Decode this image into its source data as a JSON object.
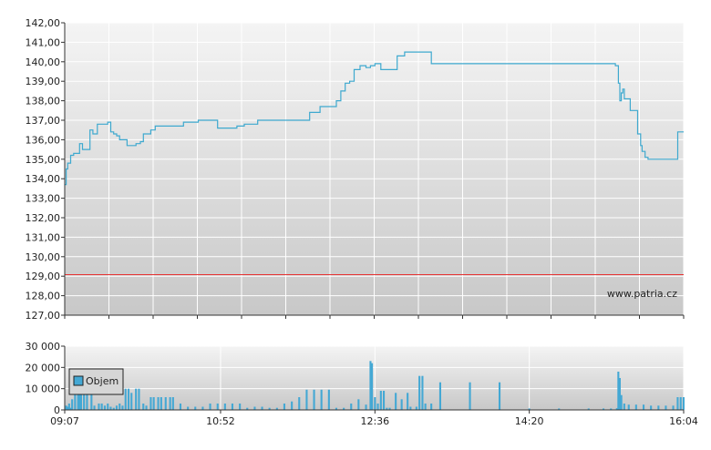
{
  "watermark": "www.patria.cz",
  "legend_label": "Objem",
  "colors": {
    "line": "#3ea9cf",
    "bar": "#44a8d4",
    "reference": "#e63333",
    "grid": "#ffffff",
    "axis": "#333333"
  },
  "chart_data": [
    {
      "type": "line",
      "ylim": [
        127,
        142
      ],
      "y_ticks": [
        "127,00",
        "128,00",
        "129,00",
        "130,00",
        "131,00",
        "132,00",
        "133,00",
        "134,00",
        "135,00",
        "136,00",
        "137,00",
        "138,00",
        "139,00",
        "140,00",
        "141,00",
        "142,00"
      ],
      "reference_value": 129.08,
      "x_range": [
        "09:07",
        "16:04"
      ],
      "grid": true,
      "series": [
        {
          "x": [
            "09:07",
            "09:08",
            "09:09",
            "09:11",
            "09:13",
            "09:17",
            "09:19",
            "09:24",
            "09:26",
            "09:29",
            "09:36",
            "09:38",
            "09:40",
            "09:42",
            "09:44",
            "09:49",
            "09:55",
            "09:58",
            "10:00",
            "10:05",
            "10:08",
            "10:10",
            "10:15",
            "10:18",
            "10:23",
            "10:27",
            "10:37",
            "10:50",
            "10:53",
            "10:55",
            "10:57",
            "11:03",
            "11:08",
            "11:14",
            "11:17",
            "11:23",
            "11:31",
            "11:37",
            "11:42",
            "11:47",
            "11:52",
            "11:57",
            "11:59",
            "12:03",
            "12:07",
            "12:10",
            "12:13",
            "12:16",
            "12:19",
            "12:22",
            "12:26",
            "12:30",
            "12:33",
            "12:36",
            "12:40",
            "12:46",
            "12:51",
            "12:56",
            "13:01",
            "13:07",
            "13:14",
            "13:26",
            "13:35",
            "13:52",
            "14:10",
            "14:20",
            "14:40",
            "15:00",
            "15:13",
            "15:18",
            "15:20",
            "15:21",
            "15:22",
            "15:23",
            "15:24",
            "15:28",
            "15:33",
            "15:35",
            "15:36",
            "15:38",
            "15:40",
            "15:43",
            "15:57",
            "16:00",
            "16:04"
          ],
          "y": [
            133.7,
            134.5,
            134.8,
            135.2,
            135.3,
            135.8,
            135.5,
            136.5,
            136.3,
            136.8,
            136.9,
            136.4,
            136.3,
            136.2,
            136.0,
            135.7,
            135.8,
            135.9,
            136.3,
            136.5,
            136.7,
            136.7,
            136.7,
            136.7,
            136.7,
            136.9,
            137.0,
            136.6,
            136.6,
            136.6,
            136.6,
            136.7,
            136.8,
            136.8,
            137.0,
            137.0,
            137.0,
            137.0,
            137.0,
            137.0,
            137.4,
            137.4,
            137.7,
            137.7,
            137.7,
            138.0,
            138.5,
            138.9,
            139.0,
            139.6,
            139.8,
            139.7,
            139.8,
            139.9,
            139.6,
            139.6,
            140.3,
            140.5,
            140.5,
            140.5,
            139.9,
            139.9,
            139.9,
            139.9,
            139.9,
            139.9,
            139.9,
            139.9,
            139.9,
            139.8,
            138.9,
            138.0,
            138.4,
            138.6,
            138.1,
            137.5,
            136.3,
            135.7,
            135.4,
            135.1,
            135.0,
            135.0,
            135.0,
            136.4,
            136.4
          ]
        }
      ]
    },
    {
      "type": "bar",
      "ylim": [
        0,
        30000
      ],
      "y_ticks": [
        "0",
        "10 000",
        "20 000",
        "30 000"
      ],
      "x_ticks": [
        "09:07",
        "10:52",
        "12:36",
        "14:20",
        "16:04"
      ],
      "legend": "Objem",
      "series": [
        {
          "name": "Objem",
          "x": [
            "09:08",
            "09:09",
            "09:10",
            "09:11",
            "09:12",
            "09:14",
            "09:16",
            "09:17",
            "09:18",
            "09:20",
            "09:22",
            "09:25",
            "09:27",
            "09:30",
            "09:32",
            "09:34",
            "09:36",
            "09:38",
            "09:40",
            "09:42",
            "09:44",
            "09:46",
            "09:48",
            "09:50",
            "09:52",
            "09:55",
            "09:57",
            "10:00",
            "10:02",
            "10:05",
            "10:07",
            "10:10",
            "10:12",
            "10:15",
            "10:18",
            "10:20",
            "10:25",
            "10:30",
            "10:35",
            "10:40",
            "10:45",
            "10:50",
            "10:55",
            "11:00",
            "11:05",
            "11:10",
            "11:15",
            "11:20",
            "11:25",
            "11:30",
            "11:35",
            "11:40",
            "11:45",
            "11:50",
            "11:55",
            "12:00",
            "12:05",
            "12:10",
            "12:15",
            "12:20",
            "12:25",
            "12:30",
            "12:33",
            "12:34",
            "12:36",
            "12:38",
            "12:40",
            "12:42",
            "12:44",
            "12:46",
            "12:50",
            "12:54",
            "12:58",
            "13:00",
            "13:04",
            "13:06",
            "13:08",
            "13:10",
            "13:14",
            "13:20",
            "13:40",
            "14:00",
            "14:20",
            "14:40",
            "15:00",
            "15:10",
            "15:15",
            "15:19",
            "15:20",
            "15:21",
            "15:22",
            "15:24",
            "15:27",
            "15:32",
            "15:37",
            "15:42",
            "15:47",
            "15:52",
            "15:57",
            "16:00",
            "16:02",
            "16:04"
          ],
          "y": [
            2000,
            1500,
            3000,
            1000,
            5000,
            12000,
            10000,
            9500,
            11000,
            19000,
            9000,
            10500,
            2000,
            3000,
            3000,
            2000,
            3000,
            1500,
            1000,
            2000,
            3000,
            2000,
            10000,
            10000,
            8000,
            10000,
            10000,
            3000,
            2000,
            6000,
            6000,
            6000,
            6000,
            6000,
            6000,
            6000,
            3000,
            1500,
            1500,
            1500,
            3000,
            3000,
            3000,
            3000,
            3000,
            1000,
            1500,
            1500,
            1000,
            1000,
            3000,
            4000,
            6000,
            9500,
            9500,
            9500,
            9500,
            1000,
            1000,
            3000,
            5000,
            2500,
            23000,
            22000,
            6000,
            3000,
            9000,
            9000,
            1000,
            1000,
            8000,
            5000,
            8000,
            1500,
            1500,
            16000,
            16000,
            3000,
            3000,
            13000,
            13000,
            13000,
            700,
            700,
            700,
            700,
            700,
            800,
            18000,
            15000,
            7000,
            3000,
            2500,
            2500,
            2500,
            2000,
            2000,
            2000,
            2000,
            6000,
            6000,
            6000
          ]
        }
      ]
    }
  ]
}
